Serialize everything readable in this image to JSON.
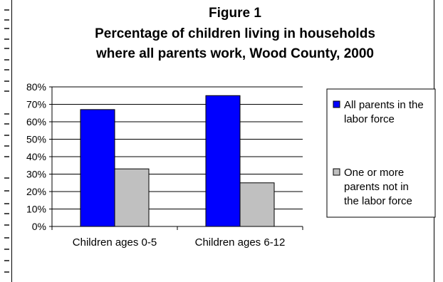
{
  "chart_data": {
    "type": "bar",
    "title_lines": [
      "Figure 1",
      "Percentage of children living in households",
      "where all parents work, Wood County, 2000"
    ],
    "categories": [
      "Children ages 0-5",
      "Children ages 6-12"
    ],
    "series": [
      {
        "name_lines": [
          "All parents in the",
          "labor force"
        ],
        "color": "#0000FF",
        "values": [
          67,
          75
        ]
      },
      {
        "name_lines": [
          "One or more",
          "parents not in",
          "the labor force"
        ],
        "color": "#C0C0C0",
        "values": [
          33,
          25
        ]
      }
    ],
    "yticks": [
      "0%",
      "10%",
      "20%",
      "30%",
      "40%",
      "50%",
      "60%",
      "70%",
      "80%"
    ],
    "ylim": [
      0,
      80
    ],
    "grid": true,
    "legend_position": "right"
  }
}
